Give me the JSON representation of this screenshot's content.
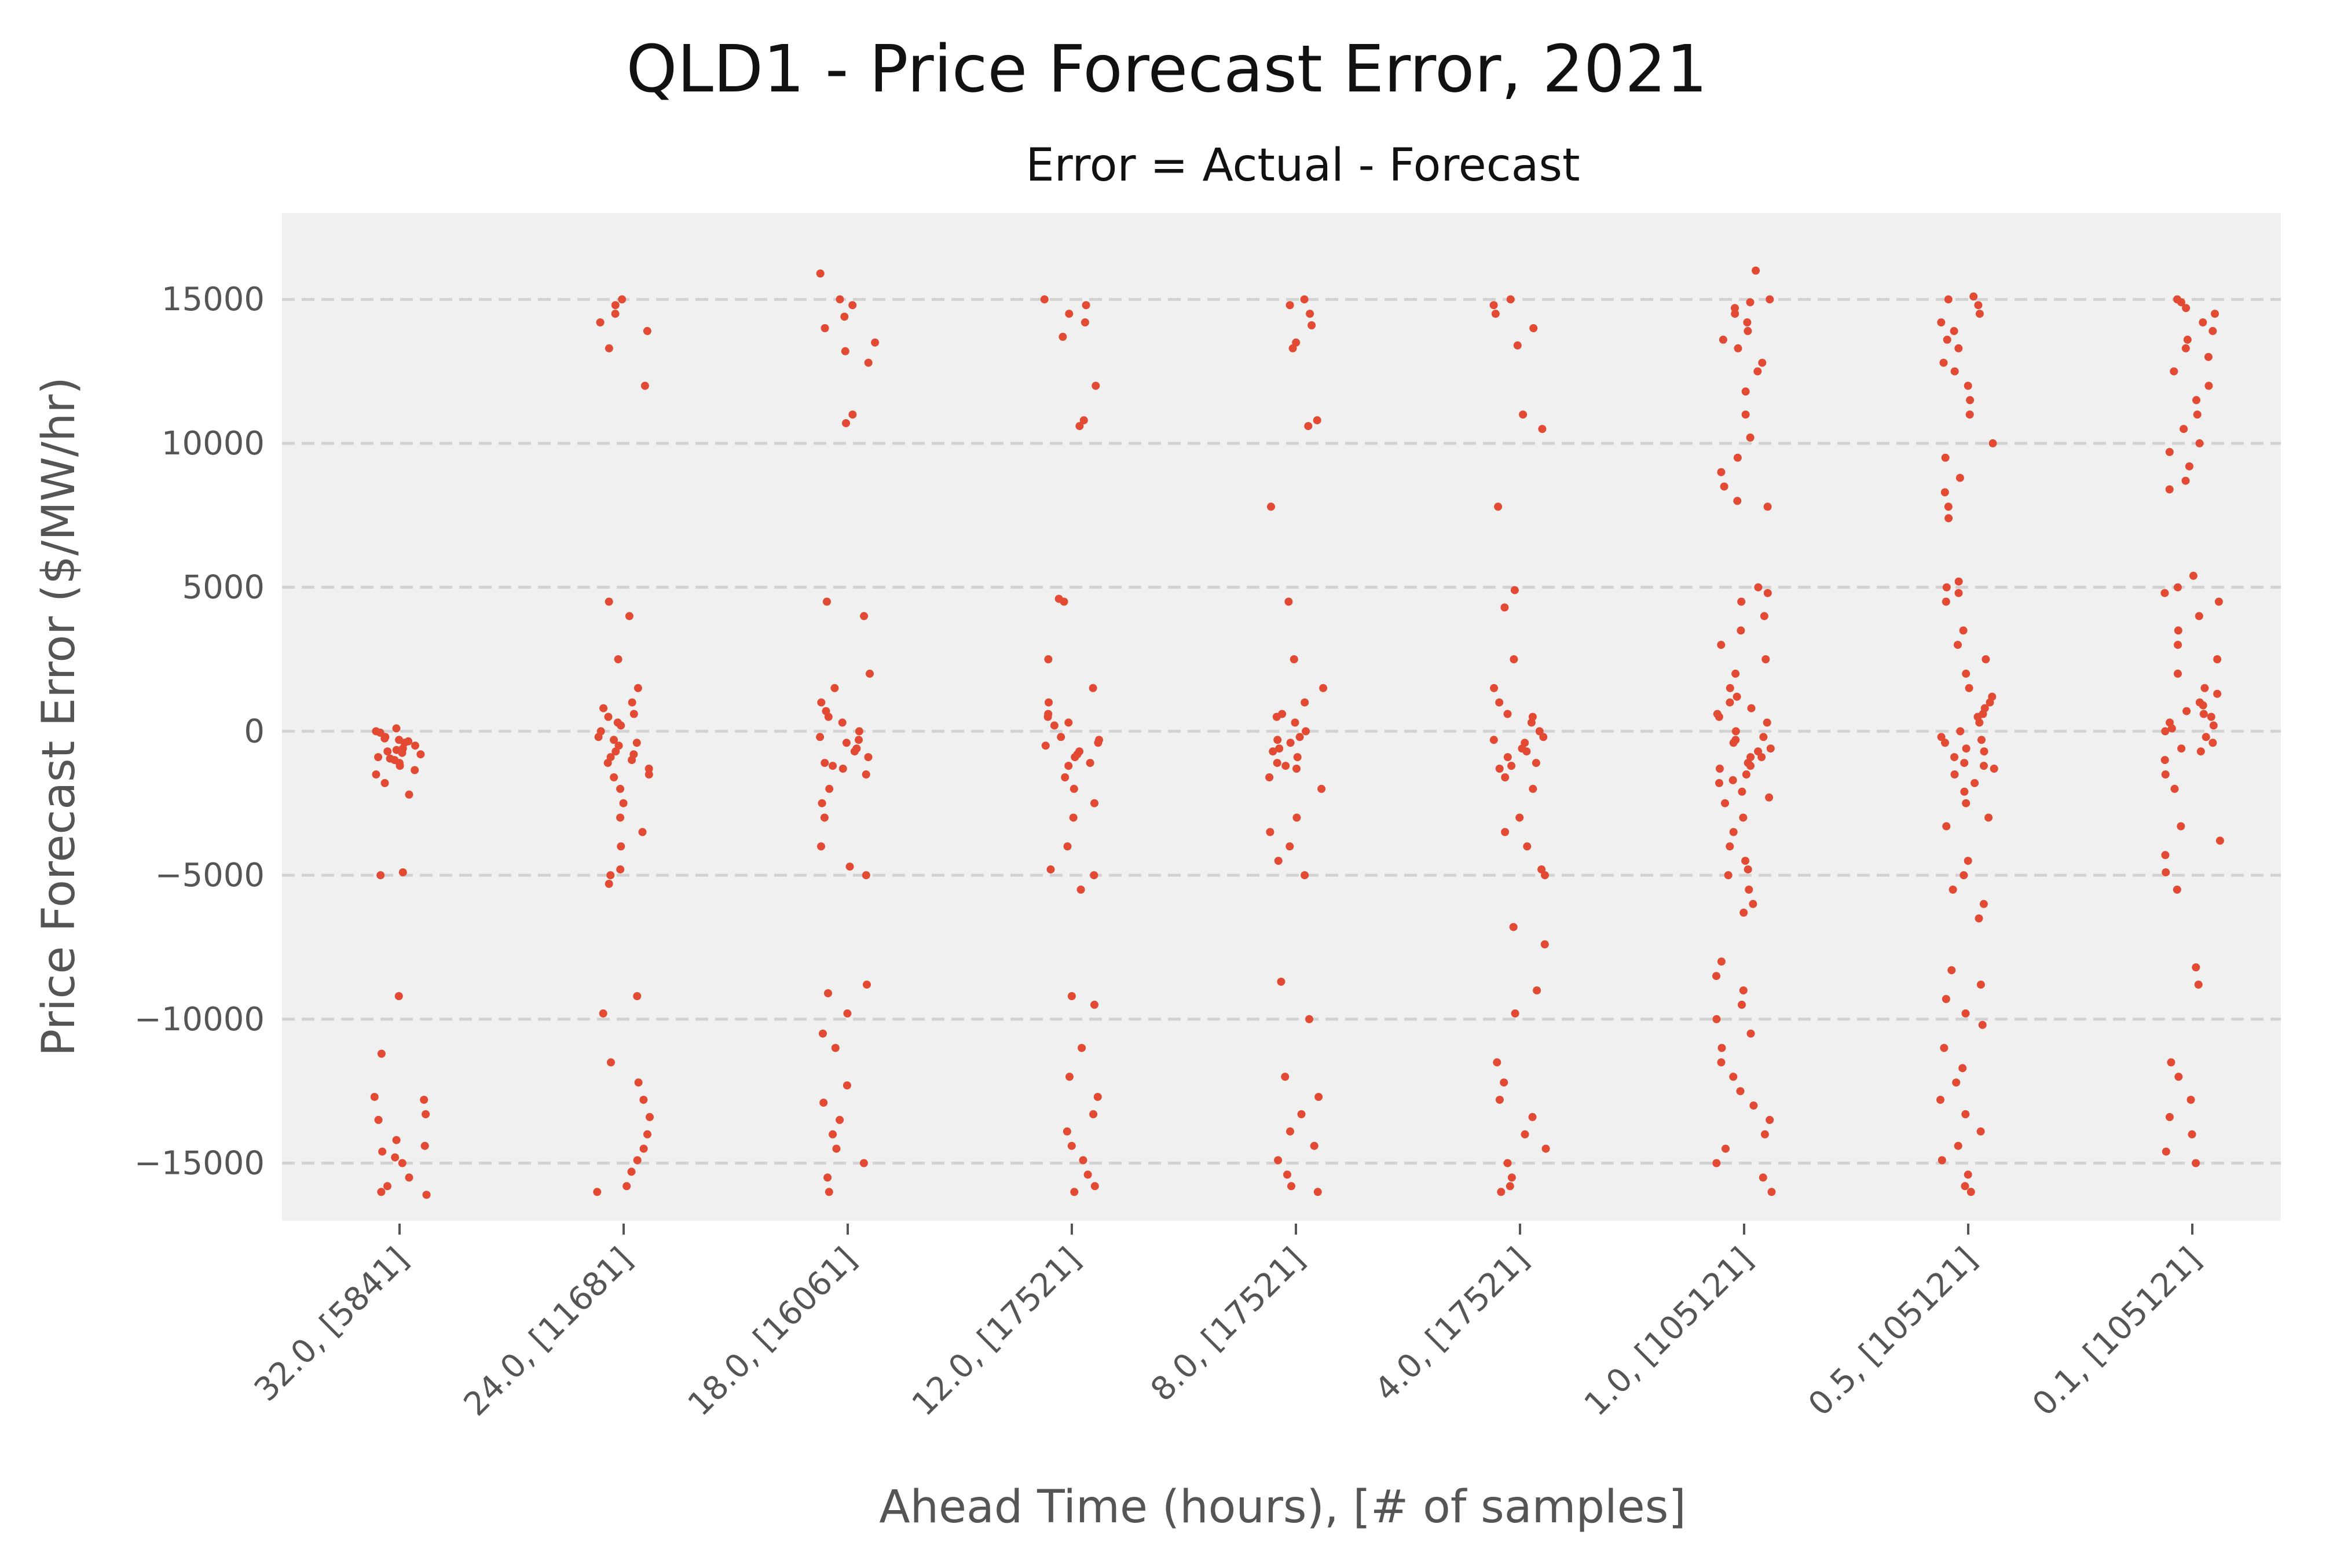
{
  "chart_data": {
    "type": "scatter",
    "title": "QLD1 - Price Forecast Error, 2021",
    "subtitle": "Error = Actual - Forecast",
    "xlabel": "Ahead Time (hours), [# of samples]",
    "ylabel": "Price Forecast Error ($/MW/hr)",
    "ylim": [
      -17000,
      18000
    ],
    "yticks": [
      15000,
      10000,
      5000,
      0,
      -5000,
      -10000,
      -15000
    ],
    "ytick_labels": [
      "15000",
      "10000",
      "5000",
      "0",
      "−5000",
      "−10000",
      "−15000"
    ],
    "categories": [
      "32.0, [5841]",
      "24.0, [11681]",
      "18.0, [16061]",
      "12.0, [17521]",
      "8.0, [17521]",
      "4.0, [17521]",
      "1.0, [105121]",
      "0.5, [105121]",
      "0.1, [105121]"
    ],
    "grid": "horizontal dashed",
    "series": [
      {
        "color": "#e24a33",
        "strip_values": [
          [
            -300,
            -600,
            -900,
            -200,
            100,
            -1200,
            -1500,
            -800,
            -400,
            -1000,
            -700,
            -500,
            -350,
            0,
            -1100,
            -1800,
            -2200,
            -5000,
            -4900,
            -9200,
            -11200,
            -12700,
            -12800,
            -13300,
            -13500,
            -14200,
            -14400,
            -14600,
            -14800,
            -15000,
            -15500,
            -15800,
            -16000,
            -16100,
            -650,
            -250,
            -750,
            -950,
            -50,
            -1350
          ],
          [
            14800,
            14500,
            14200,
            13900,
            13300,
            12000,
            15000,
            4500,
            4000,
            2500,
            1500,
            1000,
            800,
            500,
            200,
            0,
            -200,
            -500,
            -800,
            -1000,
            -1300,
            -1600,
            -2000,
            -2500,
            -3000,
            -3500,
            -4000,
            -4800,
            -5000,
            -5300,
            -9200,
            -9800,
            -11500,
            -12200,
            -12800,
            -13400,
            -14000,
            -14500,
            -14900,
            -15300,
            -15800,
            -16000,
            -300,
            -700,
            -1100,
            300,
            600,
            -400,
            -900,
            -1500
          ],
          [
            15900,
            15000,
            14800,
            14400,
            14000,
            13500,
            13200,
            12800,
            11000,
            10700,
            4500,
            4000,
            2000,
            1500,
            1000,
            500,
            0,
            -300,
            -600,
            -900,
            -1200,
            -1500,
            -2000,
            -2500,
            -3000,
            -4000,
            -4700,
            -5000,
            -8800,
            -9100,
            -9800,
            -10500,
            -11000,
            -12300,
            -12900,
            -13500,
            -14000,
            -14500,
            -15000,
            -15500,
            -16000,
            -200,
            -700,
            -1100,
            300,
            700,
            -400,
            -1300
          ],
          [
            15000,
            14800,
            14500,
            14200,
            13700,
            12000,
            10800,
            10600,
            4600,
            4500,
            2500,
            1500,
            1000,
            500,
            200,
            -200,
            -500,
            -800,
            -1200,
            -1600,
            -2000,
            -2500,
            -3000,
            -4000,
            -4800,
            -5000,
            -5500,
            -9200,
            -9500,
            -11000,
            -12000,
            -12700,
            -13300,
            -13900,
            -14400,
            -14900,
            -15400,
            -15800,
            -16000,
            -300,
            -700,
            -1100,
            300,
            600,
            -400,
            -900
          ],
          [
            15000,
            14800,
            14500,
            14100,
            13500,
            13300,
            10800,
            10600,
            7800,
            4500,
            2500,
            1500,
            1000,
            500,
            0,
            -300,
            -600,
            -900,
            -1200,
            -1600,
            -2000,
            -3000,
            -3500,
            -4000,
            -4500,
            -5000,
            -8700,
            -10000,
            -12000,
            -12700,
            -13300,
            -13900,
            -14400,
            -14900,
            -15400,
            -15800,
            -16000,
            -200,
            -700,
            -1100,
            300,
            600,
            -400,
            -1300
          ],
          [
            15000,
            14800,
            14500,
            14000,
            13400,
            11000,
            10500,
            7800,
            4900,
            4300,
            2500,
            1500,
            1000,
            500,
            0,
            -300,
            -600,
            -900,
            -1200,
            -1600,
            -2000,
            -3000,
            -3500,
            -4000,
            -4800,
            -5000,
            -6800,
            -7400,
            -9000,
            -9800,
            -11500,
            -12200,
            -12800,
            -13400,
            -14000,
            -14500,
            -15000,
            -15500,
            -15800,
            -16000,
            -200,
            -700,
            -1100,
            300,
            600,
            -400,
            -1300
          ],
          [
            16000,
            15000,
            14900,
            14700,
            14500,
            14200,
            13900,
            13600,
            13300,
            12800,
            12500,
            11800,
            11000,
            10200,
            9500,
            9000,
            8500,
            8000,
            7800,
            5000,
            4800,
            4500,
            4000,
            3500,
            3000,
            2500,
            2000,
            1500,
            1000,
            500,
            0,
            -300,
            -600,
            -900,
            -1200,
            -1500,
            -1800,
            -2100,
            -2500,
            -3000,
            -3500,
            -4000,
            -4500,
            -4800,
            -5000,
            -5500,
            -6000,
            -6300,
            -8000,
            -8500,
            -9000,
            -9500,
            -10000,
            -10500,
            -11000,
            -11500,
            -12000,
            -12500,
            -13000,
            -13500,
            -14000,
            -14500,
            -15000,
            -15500,
            -16000,
            -200,
            -700,
            -1100,
            300,
            600,
            -400,
            -900,
            -1300,
            800,
            1200,
            -1700,
            -2300
          ],
          [
            15100,
            15000,
            14800,
            14500,
            14200,
            13900,
            13600,
            13300,
            12800,
            12500,
            12000,
            11500,
            11000,
            10000,
            9500,
            8800,
            8300,
            7800,
            7400,
            5200,
            5000,
            4800,
            4500,
            3500,
            3000,
            2500,
            2000,
            1500,
            1000,
            500,
            0,
            -300,
            -600,
            -900,
            -1200,
            -1500,
            -1800,
            -2100,
            -2500,
            -3000,
            -3300,
            -4500,
            -5000,
            -5500,
            -6000,
            -6500,
            -8300,
            -8800,
            -9300,
            -9800,
            -10200,
            -11000,
            -11700,
            -12200,
            -12800,
            -13300,
            -13900,
            -14400,
            -14900,
            -15400,
            -15800,
            -16000,
            -200,
            -700,
            -1100,
            300,
            600,
            -400,
            -1300,
            800,
            1200
          ],
          [
            15000,
            14900,
            14700,
            14500,
            14200,
            13900,
            13600,
            13300,
            13000,
            12500,
            12000,
            11500,
            11000,
            10500,
            10000,
            9700,
            9200,
            8700,
            8400,
            5400,
            5000,
            4800,
            4500,
            4000,
            3500,
            3000,
            2500,
            2000,
            1500,
            1000,
            700,
            500,
            300,
            100,
            0,
            -200,
            -400,
            -700,
            -1000,
            -1500,
            -2000,
            -3300,
            -3800,
            -4300,
            -4900,
            -5500,
            -8200,
            -8800,
            -11500,
            -12000,
            -12800,
            -13400,
            -14000,
            -14600,
            -15000,
            600,
            900,
            1300,
            -600,
            200
          ]
        ]
      }
    ]
  }
}
